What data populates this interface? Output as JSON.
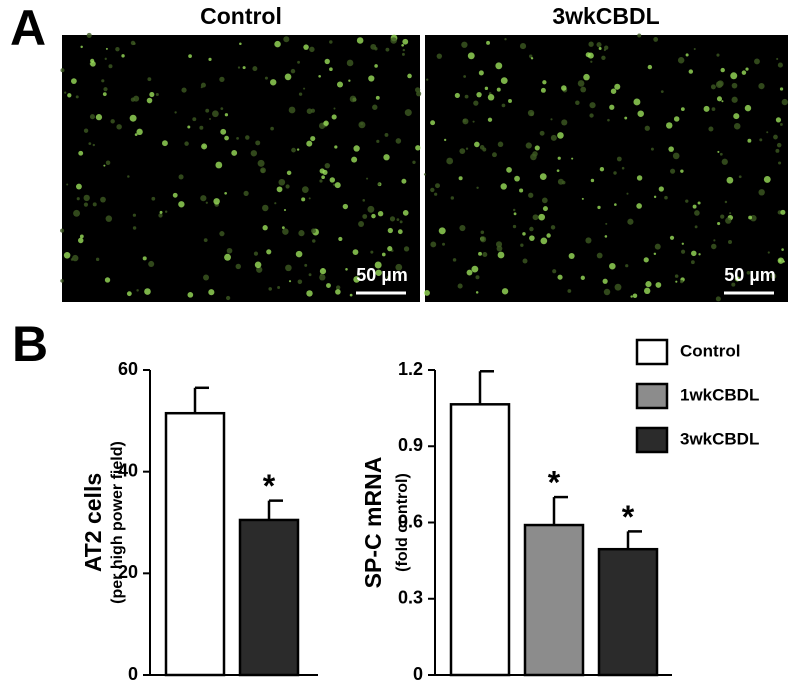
{
  "panels": {
    "a": "A",
    "b": "B"
  },
  "images": [
    {
      "title": "Control",
      "scale_bar": "50 µm"
    },
    {
      "title": "3wkCBDL",
      "scale_bar": "50 µm"
    }
  ],
  "chart_data": [
    {
      "type": "bar",
      "ylabel": "AT2 cells",
      "ylabel_sub": "(per high power field)",
      "categories": [
        null
      ],
      "ylim": [
        0,
        60
      ],
      "yticks": [
        0,
        20,
        40,
        60
      ],
      "series": [
        {
          "color": "#ffffff",
          "values": [
            51.5
          ],
          "errors": [
            5
          ]
        },
        {
          "color": "#2b2b2b",
          "values": [
            30.5
          ],
          "errors": [
            3.8
          ],
          "annotation": "*"
        }
      ]
    },
    {
      "type": "bar",
      "ylabel": "SP-C mRNA",
      "ylabel_sub": "(fold control)",
      "categories": [
        null
      ],
      "ylim": [
        0,
        1.2
      ],
      "yticks": [
        0,
        0.3,
        0.6,
        0.9,
        1.2
      ],
      "series": [
        {
          "name": "Control",
          "color": "#ffffff",
          "values": [
            1.065
          ],
          "errors": [
            0.13
          ]
        },
        {
          "name": "1wkCBDL",
          "color": "#8c8c8c",
          "values": [
            0.59
          ],
          "errors": [
            0.11
          ],
          "annotation": "*"
        },
        {
          "name": "3wkCBDL",
          "color": "#2b2b2b",
          "values": [
            0.495
          ],
          "errors": [
            0.07
          ],
          "annotation": "*"
        }
      ]
    }
  ]
}
